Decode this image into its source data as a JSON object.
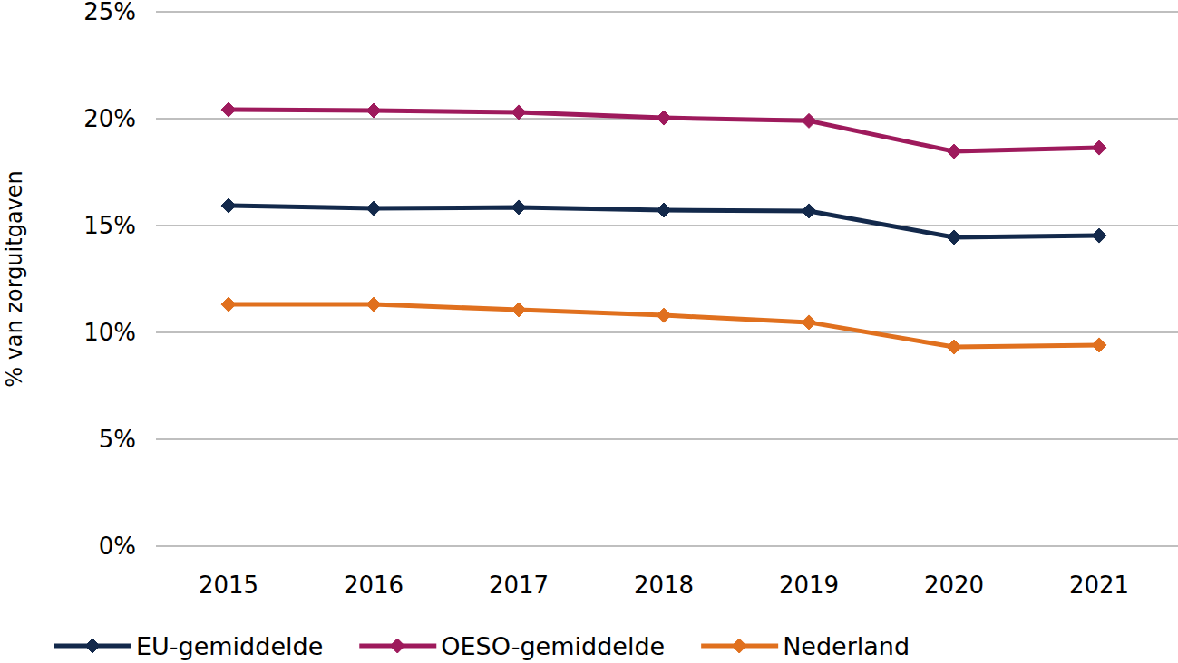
{
  "chart_data": {
    "type": "line",
    "y_label": "% van zorguitgaven",
    "categories": [
      "2015",
      "2016",
      "2017",
      "2018",
      "2019",
      "2020",
      "2021"
    ],
    "series": [
      {
        "name": "EU-gemiddelde",
        "color": "#13294b",
        "marker": "diamond",
        "values": [
          15.93,
          15.8,
          15.85,
          15.72,
          15.68,
          14.45,
          14.53
        ]
      },
      {
        "name": "OESO-gemiddelde",
        "color": "#9e1a5c",
        "marker": "diamond",
        "values": [
          20.42,
          20.38,
          20.3,
          20.04,
          19.9,
          18.47,
          18.64
        ]
      },
      {
        "name": "Nederland",
        "color": "#e0701e",
        "marker": "diamond",
        "values": [
          11.31,
          11.31,
          11.06,
          10.8,
          10.47,
          9.32,
          9.41
        ]
      }
    ],
    "ylim": [
      0,
      25
    ],
    "yticks": [
      {
        "value": 0,
        "label": "0%"
      },
      {
        "value": 5,
        "label": "5%"
      },
      {
        "value": 10,
        "label": "10%"
      },
      {
        "value": 15,
        "label": "15%"
      },
      {
        "value": 20,
        "label": "20%"
      },
      {
        "value": 25,
        "label": "25%"
      }
    ],
    "grid": true,
    "legend": "bottom"
  }
}
